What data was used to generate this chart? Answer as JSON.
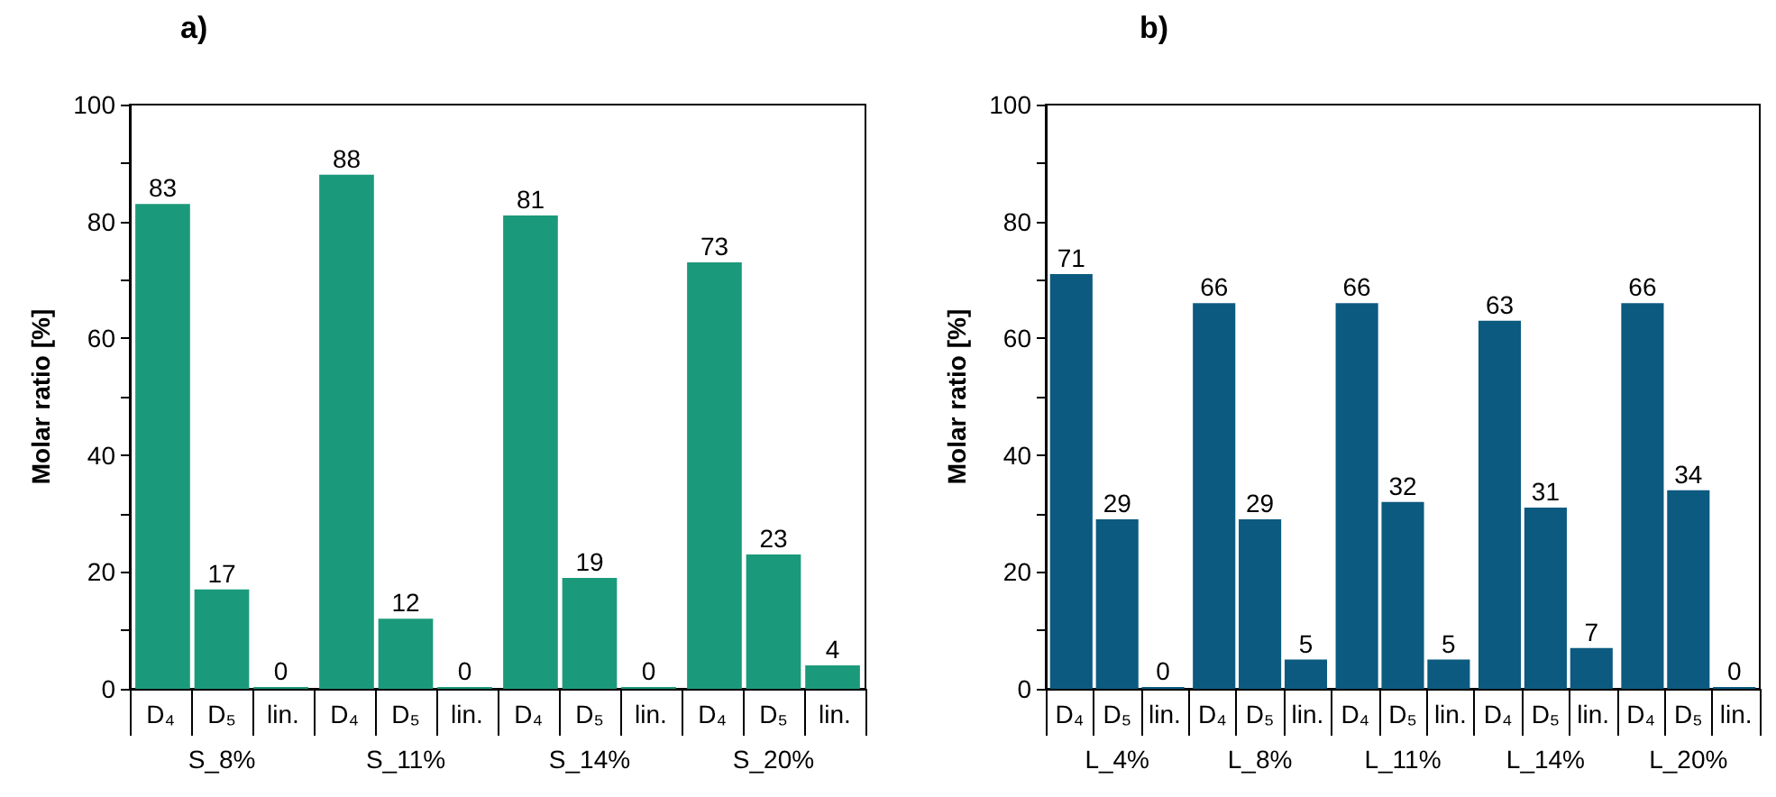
{
  "chart_data": [
    {
      "type": "bar",
      "title": "a)",
      "ylabel": "Molar ratio [%]",
      "categories": [
        "S_8%",
        "S_11%",
        "S_14%",
        "S_20%"
      ],
      "series": [
        {
          "name": "D₄",
          "color": "#1b9a7b",
          "values": [
            83,
            88,
            81,
            73
          ]
        },
        {
          "name": "D₅",
          "color": "#1b9a7b",
          "values": [
            17,
            12,
            19,
            23
          ]
        },
        {
          "name": "lin.",
          "color": "#1b9a7b",
          "values": [
            0,
            0,
            0,
            4
          ]
        }
      ],
      "ylim": [
        0,
        100
      ],
      "yticks": [
        0,
        20,
        40,
        60,
        80,
        100
      ],
      "data_labels": true,
      "grid": false,
      "legend": false
    },
    {
      "type": "bar",
      "title": "b)",
      "ylabel": "Molar ratio [%]",
      "categories": [
        "L_4%",
        "L_8%",
        "L_11%",
        "L_14%",
        "L_20%"
      ],
      "series": [
        {
          "name": "D₄",
          "color": "#0c5a80",
          "values": [
            71,
            66,
            66,
            63,
            66
          ]
        },
        {
          "name": "D₅",
          "color": "#0c5a80",
          "values": [
            29,
            29,
            32,
            31,
            34
          ]
        },
        {
          "name": "lin.",
          "color": "#0c5a80",
          "values": [
            0,
            5,
            5,
            7,
            0
          ]
        }
      ],
      "ylim": [
        0,
        100
      ],
      "yticks": [
        0,
        20,
        40,
        60,
        80,
        100
      ],
      "data_labels": true,
      "grid": false,
      "legend": false
    }
  ]
}
